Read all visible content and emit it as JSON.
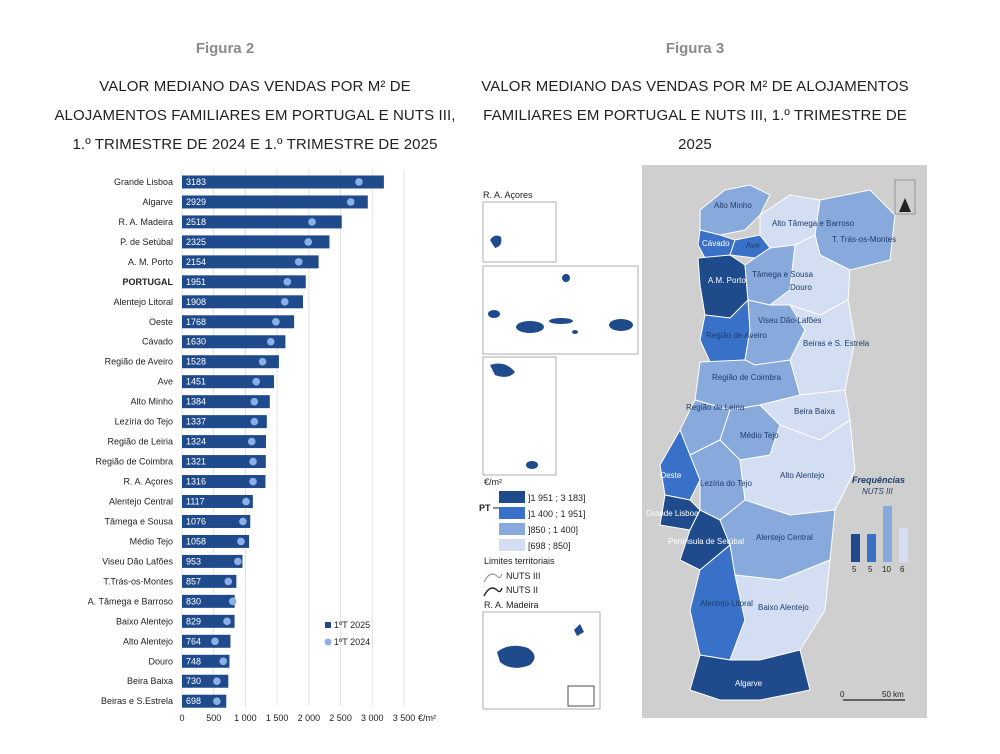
{
  "figure2": {
    "label": "Figura 2",
    "title_lines": [
      "VALOR MEDIANO DAS VENDAS POR M² DE",
      "ALOJAMENTOS FAMILIARES EM PORTUGAL E NUTS III,",
      "1.º TRIMESTRE DE 2024 E 1.º TRIMESTRE DE 2025"
    ]
  },
  "figure3": {
    "label": "Figura 3",
    "title_lines": [
      "VALOR MEDIANO DAS VENDAS POR M² DE ALOJAMENTOS",
      "FAMILIARES EM PORTUGAL E NUTS III, 1.º TRIMESTRE DE 2025"
    ],
    "insets": [
      "R. A. Açores",
      "R. A. Madeira"
    ],
    "legend_unit": "€/m²",
    "pt_marker": "PT",
    "legend_classes": [
      {
        "label": "]1 951 ; 3 183]",
        "color": "#1f4b8c"
      },
      {
        "label": "]1 400 ; 1 951]",
        "color": "#3a71c8"
      },
      {
        "label": "]850 ; 1 400]",
        "color": "#88a9dc"
      },
      {
        "label": "[698 ; 850]",
        "color": "#d3def2"
      }
    ],
    "limits_title": "Limites territoriais",
    "limits": [
      "NUTS III",
      "NUTS II"
    ],
    "freq_title": "Frequências",
    "freq_subtitle": "NUTS III",
    "freq_values": [
      5,
      5,
      10,
      6
    ],
    "scale_labels": [
      "0",
      "50 km"
    ],
    "region_labels": [
      "Alto Minho",
      "Cávado",
      "Ave",
      "Alto Tâmega e Barroso",
      "T. Trás-os-Montes",
      "A.M. Porto",
      "Tâmega e Sousa",
      "Douro",
      "Região de Aveiro",
      "Viseu Dão-Lafões",
      "Beiras e S. Estrela",
      "Região de Coimbra",
      "Região de Leiria",
      "Médio Tejo",
      "Beira Baixa",
      "Oeste",
      "Lezíria do Tejo",
      "Alto Alentejo",
      "Grande Lisboa",
      "Península de Setúbal",
      "Alentejo Central",
      "Alentejo Litoral",
      "Baixo Alentejo",
      "Algarve"
    ]
  },
  "chart_data": {
    "type": "bar",
    "orientation": "horizontal",
    "unit": "€/m²",
    "categories": [
      "Grande Lisboa",
      "Algarve",
      "R. A. Madeira",
      "P. de Setúbal",
      "A. M. Porto",
      "PORTUGAL",
      "Alentejo Litoral",
      "Oeste",
      "Cávado",
      "Região de Aveiro",
      "Ave",
      "Alto Minho",
      "Lezíria do Tejo",
      "Região de Leiria",
      "Região de Coimbra",
      "R. A. Açores",
      "Alentejo Central",
      "Tâmega e Sousa",
      "Médio Tejo",
      "Viseu Dão Lafões",
      "T.Trás-os-Montes",
      "A. Tâmega e Barroso",
      "Baixo Alentejo",
      "Alto Alentejo",
      "Douro",
      "Beira Baixa",
      "Beiras e S.Estrela"
    ],
    "series": [
      {
        "name": "1ºT 2025",
        "type": "bar",
        "color": "#1f4b8c",
        "values": [
          3183,
          2929,
          2518,
          2325,
          2154,
          1951,
          1908,
          1768,
          1630,
          1528,
          1451,
          1384,
          1337,
          1324,
          1321,
          1316,
          1117,
          1076,
          1058,
          953,
          857,
          830,
          829,
          764,
          748,
          730,
          698
        ]
      },
      {
        "name": "1ºT 2024",
        "type": "point",
        "color": "#8cb0e6",
        "values": [
          2790,
          2660,
          2050,
          1990,
          1840,
          1660,
          1620,
          1480,
          1400,
          1270,
          1170,
          1140,
          1140,
          1100,
          1120,
          1120,
          1010,
          960,
          930,
          880,
          730,
          800,
          710,
          520,
          650,
          550,
          550
        ]
      }
    ],
    "xlim": [
      0,
      3500
    ],
    "xticks": [
      0,
      500,
      1000,
      1500,
      2000,
      2500,
      3000,
      3500
    ],
    "xtick_labels": [
      "0",
      "500",
      "1 000",
      "1 500",
      "2 000",
      "2 500",
      "3 000",
      "3 500"
    ],
    "highlight_category": "PORTUGAL"
  }
}
